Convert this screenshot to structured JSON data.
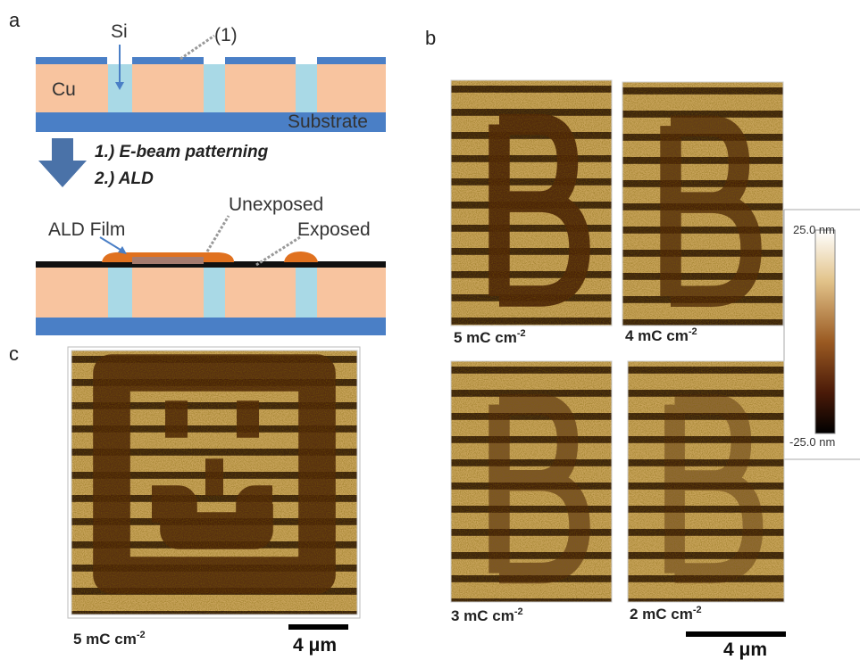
{
  "panel_a": {
    "label": "a",
    "si": "Si",
    "marker": "(1)",
    "cu": "Cu",
    "substrate": "Substrate",
    "step1": "1.) E-beam patterning",
    "step2": "2.) ALD",
    "ald_film": "ALD Film",
    "unexposed": "Unexposed",
    "exposed": "Exposed"
  },
  "panel_b": {
    "label": "b",
    "images": [
      {
        "dose": "5 mC cm",
        "exponent": "-2"
      },
      {
        "dose": "4 mC cm",
        "exponent": "-2"
      },
      {
        "dose": "3 mC cm",
        "exponent": "-2"
      },
      {
        "dose": "2 mC cm",
        "exponent": "-2"
      }
    ],
    "colorbar": {
      "max": "25.0 nm",
      "min": "-25.0 nm"
    },
    "scale_bar": "4 μm"
  },
  "panel_c": {
    "label": "c",
    "dose": "5 mC cm",
    "exponent": "-2",
    "scale_bar": "4 μm"
  }
}
